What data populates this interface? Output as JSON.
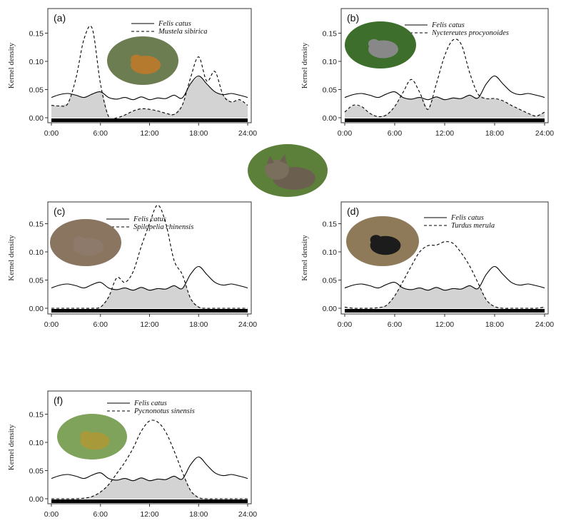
{
  "figure": {
    "ylabel": "Kernel density",
    "x_ticks": [
      "0:00",
      "6:00",
      "12:00",
      "18:00",
      "24:00"
    ],
    "y_ticks": [
      "0.00",
      "0.05",
      "0.10",
      "0.15"
    ]
  },
  "photo_subjects": [
    "cat",
    "Mustela sibirica",
    "Nyctereutes procyonoides",
    "Spilopelia chinensis",
    "Turdus merula",
    "Pycnonotus sinensis"
  ],
  "colors": {
    "overlap_fill": "#d3d3d3",
    "line": "#000000",
    "axis": "#333333"
  },
  "chart_data": [
    {
      "type": "line",
      "panel": "(a)",
      "xlabel": "",
      "ylabel": "Kernel density",
      "xlim": [
        0,
        24
      ],
      "ylim": [
        0,
        0.17
      ],
      "series": [
        {
          "name": "Felis catus",
          "style": "solid",
          "x": [
            0,
            1,
            2,
            3,
            4,
            5,
            6,
            7,
            8,
            9,
            10,
            11,
            12,
            13,
            14,
            15,
            16,
            17,
            18,
            19,
            20,
            21,
            22,
            23,
            24
          ],
          "y": [
            0.036,
            0.041,
            0.043,
            0.04,
            0.036,
            0.042,
            0.046,
            0.036,
            0.033,
            0.036,
            0.032,
            0.037,
            0.032,
            0.035,
            0.034,
            0.04,
            0.035,
            0.06,
            0.074,
            0.06,
            0.046,
            0.041,
            0.043,
            0.04,
            0.036
          ]
        },
        {
          "name": "Mustela sibirica",
          "style": "dashed",
          "x": [
            0,
            1,
            2,
            3,
            4,
            5,
            6,
            7,
            8,
            9,
            10,
            11,
            12,
            13,
            14,
            15,
            16,
            17,
            18,
            19,
            20,
            21,
            22,
            23,
            24
          ],
          "y": [
            0.022,
            0.021,
            0.025,
            0.07,
            0.14,
            0.158,
            0.06,
            0.002,
            0.0,
            0.005,
            0.012,
            0.016,
            0.015,
            0.012,
            0.008,
            0.006,
            0.022,
            0.07,
            0.108,
            0.065,
            0.082,
            0.04,
            0.028,
            0.032,
            0.022
          ]
        }
      ]
    },
    {
      "type": "line",
      "panel": "(b)",
      "xlabel": "",
      "ylabel": "Kernel density",
      "xlim": [
        0,
        24
      ],
      "ylim": [
        0,
        0.17
      ],
      "series": [
        {
          "name": "Felis catus",
          "style": "solid",
          "x": [
            0,
            1,
            2,
            3,
            4,
            5,
            6,
            7,
            8,
            9,
            10,
            11,
            12,
            13,
            14,
            15,
            16,
            17,
            18,
            19,
            20,
            21,
            22,
            23,
            24
          ],
          "y": [
            0.036,
            0.041,
            0.043,
            0.04,
            0.036,
            0.042,
            0.046,
            0.036,
            0.033,
            0.036,
            0.032,
            0.037,
            0.032,
            0.035,
            0.034,
            0.04,
            0.035,
            0.06,
            0.074,
            0.06,
            0.046,
            0.041,
            0.043,
            0.04,
            0.036
          ]
        },
        {
          "name": "Nyctereutes procyonoides",
          "style": "dashed",
          "x": [
            0,
            1,
            2,
            3,
            4,
            5,
            6,
            7,
            8,
            9,
            10,
            11,
            12,
            13,
            14,
            15,
            16,
            17,
            18,
            19,
            20,
            21,
            22,
            23,
            24
          ],
          "y": [
            0.01,
            0.022,
            0.02,
            0.008,
            0.002,
            0.005,
            0.02,
            0.045,
            0.068,
            0.045,
            0.015,
            0.06,
            0.11,
            0.138,
            0.13,
            0.08,
            0.042,
            0.034,
            0.034,
            0.03,
            0.022,
            0.015,
            0.008,
            0.003,
            0.01
          ]
        }
      ]
    },
    {
      "type": "line",
      "panel": "(c)",
      "xlabel": "",
      "ylabel": "Kernel density",
      "xlim": [
        0,
        24
      ],
      "ylim": [
        0,
        0.19
      ],
      "series": [
        {
          "name": "Felis catus",
          "style": "solid",
          "x": [
            0,
            1,
            2,
            3,
            4,
            5,
            6,
            7,
            8,
            9,
            10,
            11,
            12,
            13,
            14,
            15,
            16,
            17,
            18,
            19,
            20,
            21,
            22,
            23,
            24
          ],
          "y": [
            0.036,
            0.041,
            0.043,
            0.04,
            0.036,
            0.042,
            0.046,
            0.036,
            0.033,
            0.036,
            0.032,
            0.037,
            0.032,
            0.035,
            0.034,
            0.04,
            0.035,
            0.06,
            0.074,
            0.06,
            0.046,
            0.041,
            0.043,
            0.04,
            0.036
          ]
        },
        {
          "name": "Spilopelia chinensis",
          "style": "dashed",
          "x": [
            0,
            1,
            2,
            3,
            4,
            5,
            6,
            7,
            8,
            9,
            10,
            11,
            12,
            13,
            14,
            15,
            16,
            17,
            18,
            19,
            20,
            21,
            22,
            23,
            24
          ],
          "y": [
            0.0,
            0.0,
            0.0,
            0.0,
            0.0,
            0.0,
            0.002,
            0.02,
            0.054,
            0.046,
            0.065,
            0.11,
            0.15,
            0.183,
            0.15,
            0.085,
            0.06,
            0.018,
            0.002,
            0.0,
            0.0,
            0.0,
            0.0,
            0.0,
            0.0
          ]
        }
      ]
    },
    {
      "type": "line",
      "panel": "(d)",
      "xlabel": "",
      "ylabel": "Kernel density",
      "xlim": [
        0,
        24
      ],
      "ylim": [
        0,
        0.17
      ],
      "series": [
        {
          "name": "Felis catus",
          "style": "solid",
          "x": [
            0,
            1,
            2,
            3,
            4,
            5,
            6,
            7,
            8,
            9,
            10,
            11,
            12,
            13,
            14,
            15,
            16,
            17,
            18,
            19,
            20,
            21,
            22,
            23,
            24
          ],
          "y": [
            0.036,
            0.041,
            0.043,
            0.04,
            0.036,
            0.042,
            0.046,
            0.036,
            0.033,
            0.036,
            0.032,
            0.037,
            0.032,
            0.035,
            0.034,
            0.04,
            0.035,
            0.06,
            0.074,
            0.06,
            0.046,
            0.041,
            0.043,
            0.04,
            0.036
          ]
        },
        {
          "name": "Turdus merula",
          "style": "dashed",
          "x": [
            0,
            1,
            2,
            3,
            4,
            5,
            6,
            7,
            8,
            9,
            10,
            11,
            12,
            13,
            14,
            15,
            16,
            17,
            18,
            19,
            20,
            21,
            22,
            23,
            24
          ],
          "y": [
            0.002,
            0.0,
            0.0,
            0.0,
            0.001,
            0.005,
            0.022,
            0.048,
            0.075,
            0.1,
            0.111,
            0.112,
            0.118,
            0.115,
            0.098,
            0.075,
            0.045,
            0.015,
            0.003,
            0.0,
            0.0,
            0.0,
            0.0,
            0.0,
            0.002
          ]
        }
      ]
    },
    {
      "type": "line",
      "panel": "(f)",
      "xlabel": "",
      "ylabel": "Kernel density",
      "xlim": [
        0,
        24
      ],
      "ylim": [
        0,
        0.17
      ],
      "series": [
        {
          "name": "Felis catus",
          "style": "solid",
          "x": [
            0,
            1,
            2,
            3,
            4,
            5,
            6,
            7,
            8,
            9,
            10,
            11,
            12,
            13,
            14,
            15,
            16,
            17,
            18,
            19,
            20,
            21,
            22,
            23,
            24
          ],
          "y": [
            0.036,
            0.041,
            0.043,
            0.04,
            0.036,
            0.042,
            0.046,
            0.036,
            0.033,
            0.036,
            0.032,
            0.037,
            0.032,
            0.035,
            0.034,
            0.04,
            0.035,
            0.06,
            0.074,
            0.06,
            0.046,
            0.041,
            0.043,
            0.04,
            0.036
          ]
        },
        {
          "name": "Pycnonotus sinensis",
          "style": "dashed",
          "x": [
            0,
            1,
            2,
            3,
            4,
            5,
            6,
            7,
            8,
            9,
            10,
            11,
            12,
            13,
            14,
            15,
            16,
            17,
            18,
            19,
            20,
            21,
            22,
            23,
            24
          ],
          "y": [
            0.0,
            0.0,
            0.0,
            0.0,
            0.001,
            0.004,
            0.012,
            0.025,
            0.045,
            0.065,
            0.09,
            0.12,
            0.138,
            0.136,
            0.118,
            0.085,
            0.048,
            0.015,
            0.002,
            0.0,
            0.0,
            0.0,
            0.0,
            0.0,
            0.0
          ]
        }
      ]
    }
  ]
}
